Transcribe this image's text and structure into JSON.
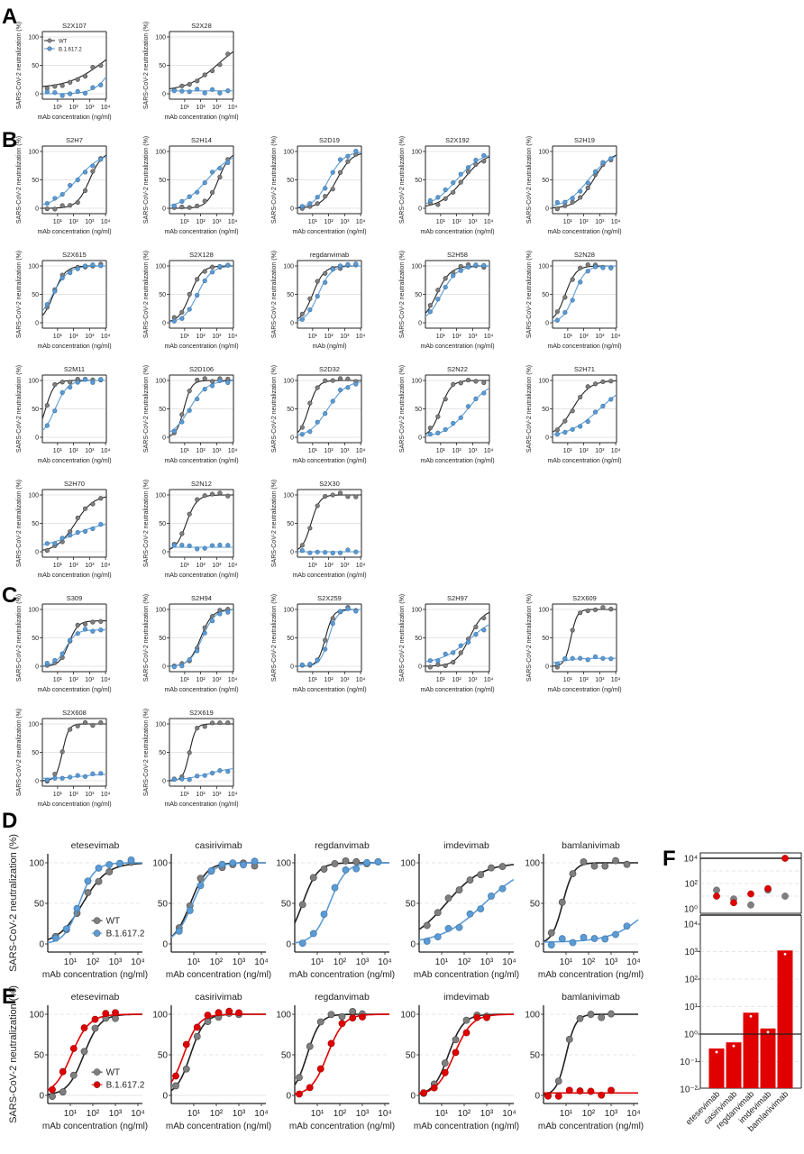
{
  "figure": {
    "panel_letters": [
      "A",
      "B",
      "C",
      "D",
      "E",
      "F"
    ],
    "y_label": "SARS-CoV-2 neutralization (%)",
    "x_label": "mAb concentration (ng/ml)",
    "y_ticks": [
      "0",
      "50",
      "100"
    ],
    "x_ticks": [
      "10¹",
      "10²",
      "10³",
      "10⁴"
    ],
    "legend": [
      "WT",
      "B.1.617.2"
    ],
    "small_x_log": [
      0.35,
      0.83,
      1.3,
      1.78,
      2.26,
      2.73,
      3.2,
      3.7
    ],
    "d_x_log": [
      0.35,
      0.83,
      1.3,
      1.78,
      2.26,
      2.73,
      3.2,
      3.7
    ],
    "e_x_log": [
      0.2,
      0.67,
      1.15,
      1.62,
      2.1,
      2.57,
      3.0
    ],
    "colors": {
      "wt": "#7f7f7f",
      "variant_blue": "#5b9bd5",
      "variant_red": "#e00000",
      "curve_wt": "#222222"
    }
  },
  "chart_data": [
    {
      "type": "line",
      "panel": "A",
      "title": "S2X107",
      "ylim": [
        -10,
        110
      ],
      "series": [
        {
          "name": "WT",
          "log_ic50": 3.8,
          "hill": 0.4,
          "min": 10,
          "max": 100
        },
        {
          "name": "B.1.617.2",
          "log_ic50": 4.5,
          "hill": 0.8,
          "min": 0,
          "max": 100
        }
      ]
    },
    {
      "type": "line",
      "panel": "A",
      "title": "S2X28",
      "ylim": [
        -10,
        110
      ],
      "series": [
        {
          "name": "WT",
          "log_ic50": 3.1,
          "hill": 0.45,
          "min": 5,
          "max": 100
        },
        {
          "name": "B.1.617.2",
          "log_ic50": 9,
          "hill": 1,
          "min": 5,
          "max": 100
        }
      ]
    },
    {
      "type": "line",
      "panel": "B",
      "title": "S2H7",
      "series": [
        {
          "name": "WT",
          "log_ic50": 3.0,
          "hill": 1.1,
          "min": 0,
          "max": 100
        },
        {
          "name": "B.1.617.2",
          "log_ic50": 2.2,
          "hill": 0.55,
          "min": 0,
          "max": 100
        }
      ]
    },
    {
      "type": "line",
      "panel": "B",
      "title": "S2H14",
      "series": [
        {
          "name": "WT",
          "log_ic50": 3.1,
          "hill": 1.2,
          "min": 0,
          "max": 100
        },
        {
          "name": "B.1.617.2",
          "log_ic50": 2.4,
          "hill": 0.55,
          "min": 0,
          "max": 100
        }
      ]
    },
    {
      "type": "line",
      "panel": "B",
      "title": "S2D19",
      "series": [
        {
          "name": "WT",
          "log_ic50": 2.5,
          "hill": 0.9,
          "min": 0,
          "max": 100
        },
        {
          "name": "B.1.617.2",
          "log_ic50": 2.0,
          "hill": 0.9,
          "min": 0,
          "max": 100
        }
      ]
    },
    {
      "type": "line",
      "panel": "B",
      "title": "S2X192",
      "series": [
        {
          "name": "WT",
          "log_ic50": 2.4,
          "hill": 0.6,
          "min": 0,
          "max": 100
        },
        {
          "name": "B.1.617.2",
          "log_ic50": 2.0,
          "hill": 0.55,
          "min": 0,
          "max": 100
        }
      ]
    },
    {
      "type": "line",
      "panel": "B",
      "title": "S2H19",
      "series": [
        {
          "name": "WT",
          "log_ic50": 2.6,
          "hill": 0.8,
          "min": 0,
          "max": 100
        },
        {
          "name": "B.1.617.2",
          "log_ic50": 2.3,
          "hill": 0.6,
          "min": 0,
          "max": 100
        }
      ]
    },
    {
      "type": "line",
      "panel": "B",
      "title": "S2X615",
      "series": [
        {
          "name": "WT",
          "log_ic50": 0.75,
          "hill": 1.2,
          "min": 0,
          "max": 100
        },
        {
          "name": "B.1.617.2",
          "log_ic50": 0.7,
          "hill": 0.9,
          "min": 0,
          "max": 100
        }
      ]
    },
    {
      "type": "line",
      "panel": "B",
      "title": "S2X128",
      "series": [
        {
          "name": "WT",
          "log_ic50": 1.35,
          "hill": 1.2,
          "min": 0,
          "max": 100
        },
        {
          "name": "B.1.617.2",
          "log_ic50": 1.8,
          "hill": 1.0,
          "min": 0,
          "max": 100
        }
      ]
    },
    {
      "type": "line",
      "panel": "B",
      "title": "regdanvimab",
      "xlabel": "mAb (ng/ml)",
      "series": [
        {
          "name": "WT",
          "log_ic50": 1.0,
          "hill": 1.2,
          "min": 0,
          "max": 100
        },
        {
          "name": "B.1.617.2",
          "log_ic50": 1.35,
          "hill": 1.1,
          "min": 0,
          "max": 100
        }
      ]
    },
    {
      "type": "line",
      "panel": "B",
      "title": "S2H58",
      "series": [
        {
          "name": "WT",
          "log_ic50": 0.75,
          "hill": 1.0,
          "min": 0,
          "max": 100
        },
        {
          "name": "B.1.617.2",
          "log_ic50": 1.05,
          "hill": 0.9,
          "min": 0,
          "max": 100
        }
      ]
    },
    {
      "type": "line",
      "panel": "B",
      "title": "S2N28",
      "series": [
        {
          "name": "WT",
          "log_ic50": 0.85,
          "hill": 1.3,
          "min": 0,
          "max": 100
        },
        {
          "name": "B.1.617.2",
          "log_ic50": 1.4,
          "hill": 1.2,
          "min": 0,
          "max": 100
        }
      ]
    },
    {
      "type": "line",
      "panel": "B",
      "title": "S2M11",
      "series": [
        {
          "name": "WT",
          "log_ic50": 0.25,
          "hill": 1.6,
          "min": 0,
          "max": 100
        },
        {
          "name": "B.1.617.2",
          "log_ic50": 0.85,
          "hill": 1.1,
          "min": 0,
          "max": 100
        }
      ]
    },
    {
      "type": "line",
      "panel": "B",
      "title": "S2D106",
      "series": [
        {
          "name": "WT",
          "log_ic50": 0.95,
          "hill": 1.8,
          "min": 0,
          "max": 100
        },
        {
          "name": "B.1.617.2",
          "log_ic50": 1.3,
          "hill": 0.8,
          "min": 0,
          "max": 100
        }
      ]
    },
    {
      "type": "line",
      "panel": "B",
      "title": "S2D32",
      "series": [
        {
          "name": "WT",
          "log_ic50": 0.75,
          "hill": 1.5,
          "min": 0,
          "max": 100
        },
        {
          "name": "B.1.617.2",
          "log_ic50": 1.95,
          "hill": 0.75,
          "min": 0,
          "max": 100
        }
      ]
    },
    {
      "type": "line",
      "panel": "B",
      "title": "S2N22",
      "series": [
        {
          "name": "WT",
          "log_ic50": 1.0,
          "hill": 1.3,
          "min": 0,
          "max": 100
        },
        {
          "name": "B.1.617.2",
          "log_ic50": 2.7,
          "hill": 0.6,
          "min": 0,
          "max": 100
        }
      ]
    },
    {
      "type": "line",
      "panel": "B",
      "title": "S2H71",
      "series": [
        {
          "name": "WT",
          "log_ic50": 1.3,
          "hill": 0.8,
          "min": 0,
          "max": 100
        },
        {
          "name": "B.1.617.2",
          "log_ic50": 3.0,
          "hill": 0.45,
          "min": 0,
          "max": 100
        }
      ]
    },
    {
      "type": "line",
      "panel": "B",
      "title": "S2H70",
      "series": [
        {
          "name": "WT",
          "log_ic50": 2.1,
          "hill": 0.75,
          "min": 0,
          "max": 100
        },
        {
          "name": "B.1.617.2",
          "log_ic50": 2.0,
          "hill": 0.4,
          "min": 5,
          "max": 55
        }
      ]
    },
    {
      "type": "line",
      "panel": "B",
      "title": "S2N12",
      "series": [
        {
          "name": "WT",
          "log_ic50": 1.1,
          "hill": 1.3,
          "min": 0,
          "max": 100
        },
        {
          "name": "B.1.617.2",
          "log_ic50": 9,
          "hill": 1,
          "min": 8,
          "max": 100
        }
      ]
    },
    {
      "type": "line",
      "panel": "B",
      "title": "S2X30",
      "series": [
        {
          "name": "WT",
          "log_ic50": 0.9,
          "hill": 1.6,
          "min": 0,
          "max": 100
        },
        {
          "name": "B.1.617.2",
          "log_ic50": 9,
          "hill": 1,
          "min": 0,
          "max": 100
        }
      ]
    },
    {
      "type": "line",
      "panel": "C",
      "title": "S309",
      "series": [
        {
          "name": "WT",
          "log_ic50": 1.7,
          "hill": 1.5,
          "min": 0,
          "max": 80
        },
        {
          "name": "B.1.617.2",
          "log_ic50": 1.5,
          "hill": 1.3,
          "min": 0,
          "max": 64
        }
      ]
    },
    {
      "type": "line",
      "panel": "C",
      "title": "S2H94",
      "series": [
        {
          "name": "WT",
          "log_ic50": 2.0,
          "hill": 1.2,
          "min": 0,
          "max": 100
        },
        {
          "name": "B.1.617.2",
          "log_ic50": 2.1,
          "hill": 1.1,
          "min": 0,
          "max": 100
        }
      ]
    },
    {
      "type": "line",
      "panel": "C",
      "title": "S2X259",
      "series": [
        {
          "name": "WT",
          "log_ic50": 1.8,
          "hill": 1.8,
          "min": 0,
          "max": 100
        },
        {
          "name": "B.1.617.2",
          "log_ic50": 2.0,
          "hill": 1.6,
          "min": 0,
          "max": 100
        }
      ]
    },
    {
      "type": "line",
      "panel": "C",
      "title": "S2H97",
      "series": [
        {
          "name": "WT",
          "log_ic50": 2.8,
          "hill": 1.0,
          "min": 0,
          "max": 100
        },
        {
          "name": "B.1.617.2",
          "log_ic50": 2.8,
          "hill": 0.5,
          "min": 5,
          "max": 90
        }
      ]
    },
    {
      "type": "line",
      "panel": "C",
      "title": "S2X609",
      "series": [
        {
          "name": "WT",
          "log_ic50": 1.2,
          "hill": 2.2,
          "min": 0,
          "max": 100
        },
        {
          "name": "B.1.617.2",
          "log_ic50": 0.8,
          "hill": 1,
          "min": 5,
          "max": 14
        }
      ]
    },
    {
      "type": "line",
      "panel": "C",
      "title": "S2X608",
      "series": [
        {
          "name": "WT",
          "log_ic50": 1.3,
          "hill": 2.2,
          "min": 0,
          "max": 100
        },
        {
          "name": "B.1.617.2",
          "log_ic50": 2.5,
          "hill": 0.6,
          "min": 4,
          "max": 12
        }
      ]
    },
    {
      "type": "line",
      "panel": "C",
      "title": "S2X619",
      "series": [
        {
          "name": "WT",
          "log_ic50": 1.3,
          "hill": 2.2,
          "min": 0,
          "max": 100
        },
        {
          "name": "B.1.617.2",
          "log_ic50": 2.5,
          "hill": 0.5,
          "min": 0,
          "max": 25
        }
      ]
    },
    {
      "type": "line",
      "panel": "D",
      "title": "etesevimab",
      "series": [
        {
          "name": "WT",
          "log_ic50": 1.55,
          "hill": 0.8,
          "min": 0,
          "max": 100
        },
        {
          "name": "B.1.617.2",
          "log_ic50": 1.4,
          "hill": 1.3,
          "min": 0,
          "max": 100
        }
      ]
    },
    {
      "type": "line",
      "panel": "D",
      "title": "casirivimab",
      "series": [
        {
          "name": "WT",
          "log_ic50": 0.85,
          "hill": 1.2,
          "min": 0,
          "max": 100
        },
        {
          "name": "B.1.617.2",
          "log_ic50": 0.95,
          "hill": 1.1,
          "min": 0,
          "max": 100
        }
      ]
    },
    {
      "type": "line",
      "panel": "D",
      "title": "regdanvimab",
      "series": [
        {
          "name": "WT",
          "log_ic50": 0.35,
          "hill": 1.3,
          "min": 0,
          "max": 100
        },
        {
          "name": "B.1.617.2",
          "log_ic50": 1.55,
          "hill": 1.2,
          "min": 0,
          "max": 100
        }
      ]
    },
    {
      "type": "line",
      "panel": "D",
      "title": "imdevimab",
      "series": [
        {
          "name": "WT",
          "log_ic50": 1.2,
          "hill": 0.55,
          "min": 0,
          "max": 100
        },
        {
          "name": "B.1.617.2",
          "log_ic50": 2.9,
          "hill": 0.45,
          "min": 0,
          "max": 100
        }
      ]
    },
    {
      "type": "line",
      "panel": "D",
      "title": "bamlanivimab",
      "series": [
        {
          "name": "WT",
          "log_ic50": 0.85,
          "hill": 1.8,
          "min": 0,
          "max": 100
        },
        {
          "name": "B.1.617.2",
          "log_ic50": 5.0,
          "hill": 0.5,
          "min": 2,
          "max": 100
        }
      ]
    },
    {
      "type": "line",
      "panel": "E",
      "title": "etesevimab",
      "series": [
        {
          "name": "WT",
          "log_ic50": 1.6,
          "hill": 1.2,
          "min": 0,
          "max": 100
        },
        {
          "name": "B.1.617.2",
          "log_ic50": 1.05,
          "hill": 1.1,
          "min": 0,
          "max": 100
        }
      ]
    },
    {
      "type": "line",
      "panel": "E",
      "title": "casirivimab",
      "series": [
        {
          "name": "WT",
          "log_ic50": 0.85,
          "hill": 1.4,
          "min": 0,
          "max": 100
        },
        {
          "name": "B.1.617.2",
          "log_ic50": 0.55,
          "hill": 1.3,
          "min": 0,
          "max": 100
        }
      ]
    },
    {
      "type": "line",
      "panel": "E",
      "title": "regdanvimab",
      "series": [
        {
          "name": "WT",
          "log_ic50": 0.55,
          "hill": 1.5,
          "min": 0,
          "max": 100
        },
        {
          "name": "B.1.617.2",
          "log_ic50": 1.45,
          "hill": 1.2,
          "min": 0,
          "max": 100
        }
      ]
    },
    {
      "type": "line",
      "panel": "E",
      "title": "imdevimab",
      "series": [
        {
          "name": "WT",
          "log_ic50": 1.3,
          "hill": 1.3,
          "min": 0,
          "max": 100
        },
        {
          "name": "B.1.617.2",
          "log_ic50": 1.55,
          "hill": 1.1,
          "min": 0,
          "max": 100
        }
      ]
    },
    {
      "type": "line",
      "panel": "E",
      "title": "bamlanivimab",
      "series": [
        {
          "name": "WT",
          "log_ic50": 1.0,
          "hill": 2.0,
          "min": 0,
          "max": 100
        },
        {
          "name": "B.1.617.2",
          "log_ic50": 9,
          "hill": 1,
          "min": 3,
          "max": 100
        }
      ]
    },
    {
      "type": "bar",
      "panel": "F",
      "title": "",
      "categories": [
        "etesevimab",
        "casirivimab",
        "regdanvimab",
        "imdevimab",
        "bamlanivimab"
      ],
      "values": [
        0.3,
        0.5,
        6,
        1.6,
        1100
      ],
      "ylim": [
        0.01,
        10000
      ],
      "yscale": "log",
      "y_ticks": [
        "10⁻²",
        "10⁻¹",
        "10⁰",
        "10¹",
        "10²",
        "10³",
        "10⁴"
      ],
      "top_panel": {
        "y_ticks": [
          "10⁰",
          "10²",
          "10⁴"
        ],
        "series": [
          {
            "name": "WT",
            "values": [
              30,
              6,
              2,
              30,
              10
            ]
          },
          {
            "name": "B.1.617.2",
            "values": [
              10,
              3,
              15,
              40,
              10000
            ]
          }
        ]
      }
    }
  ]
}
